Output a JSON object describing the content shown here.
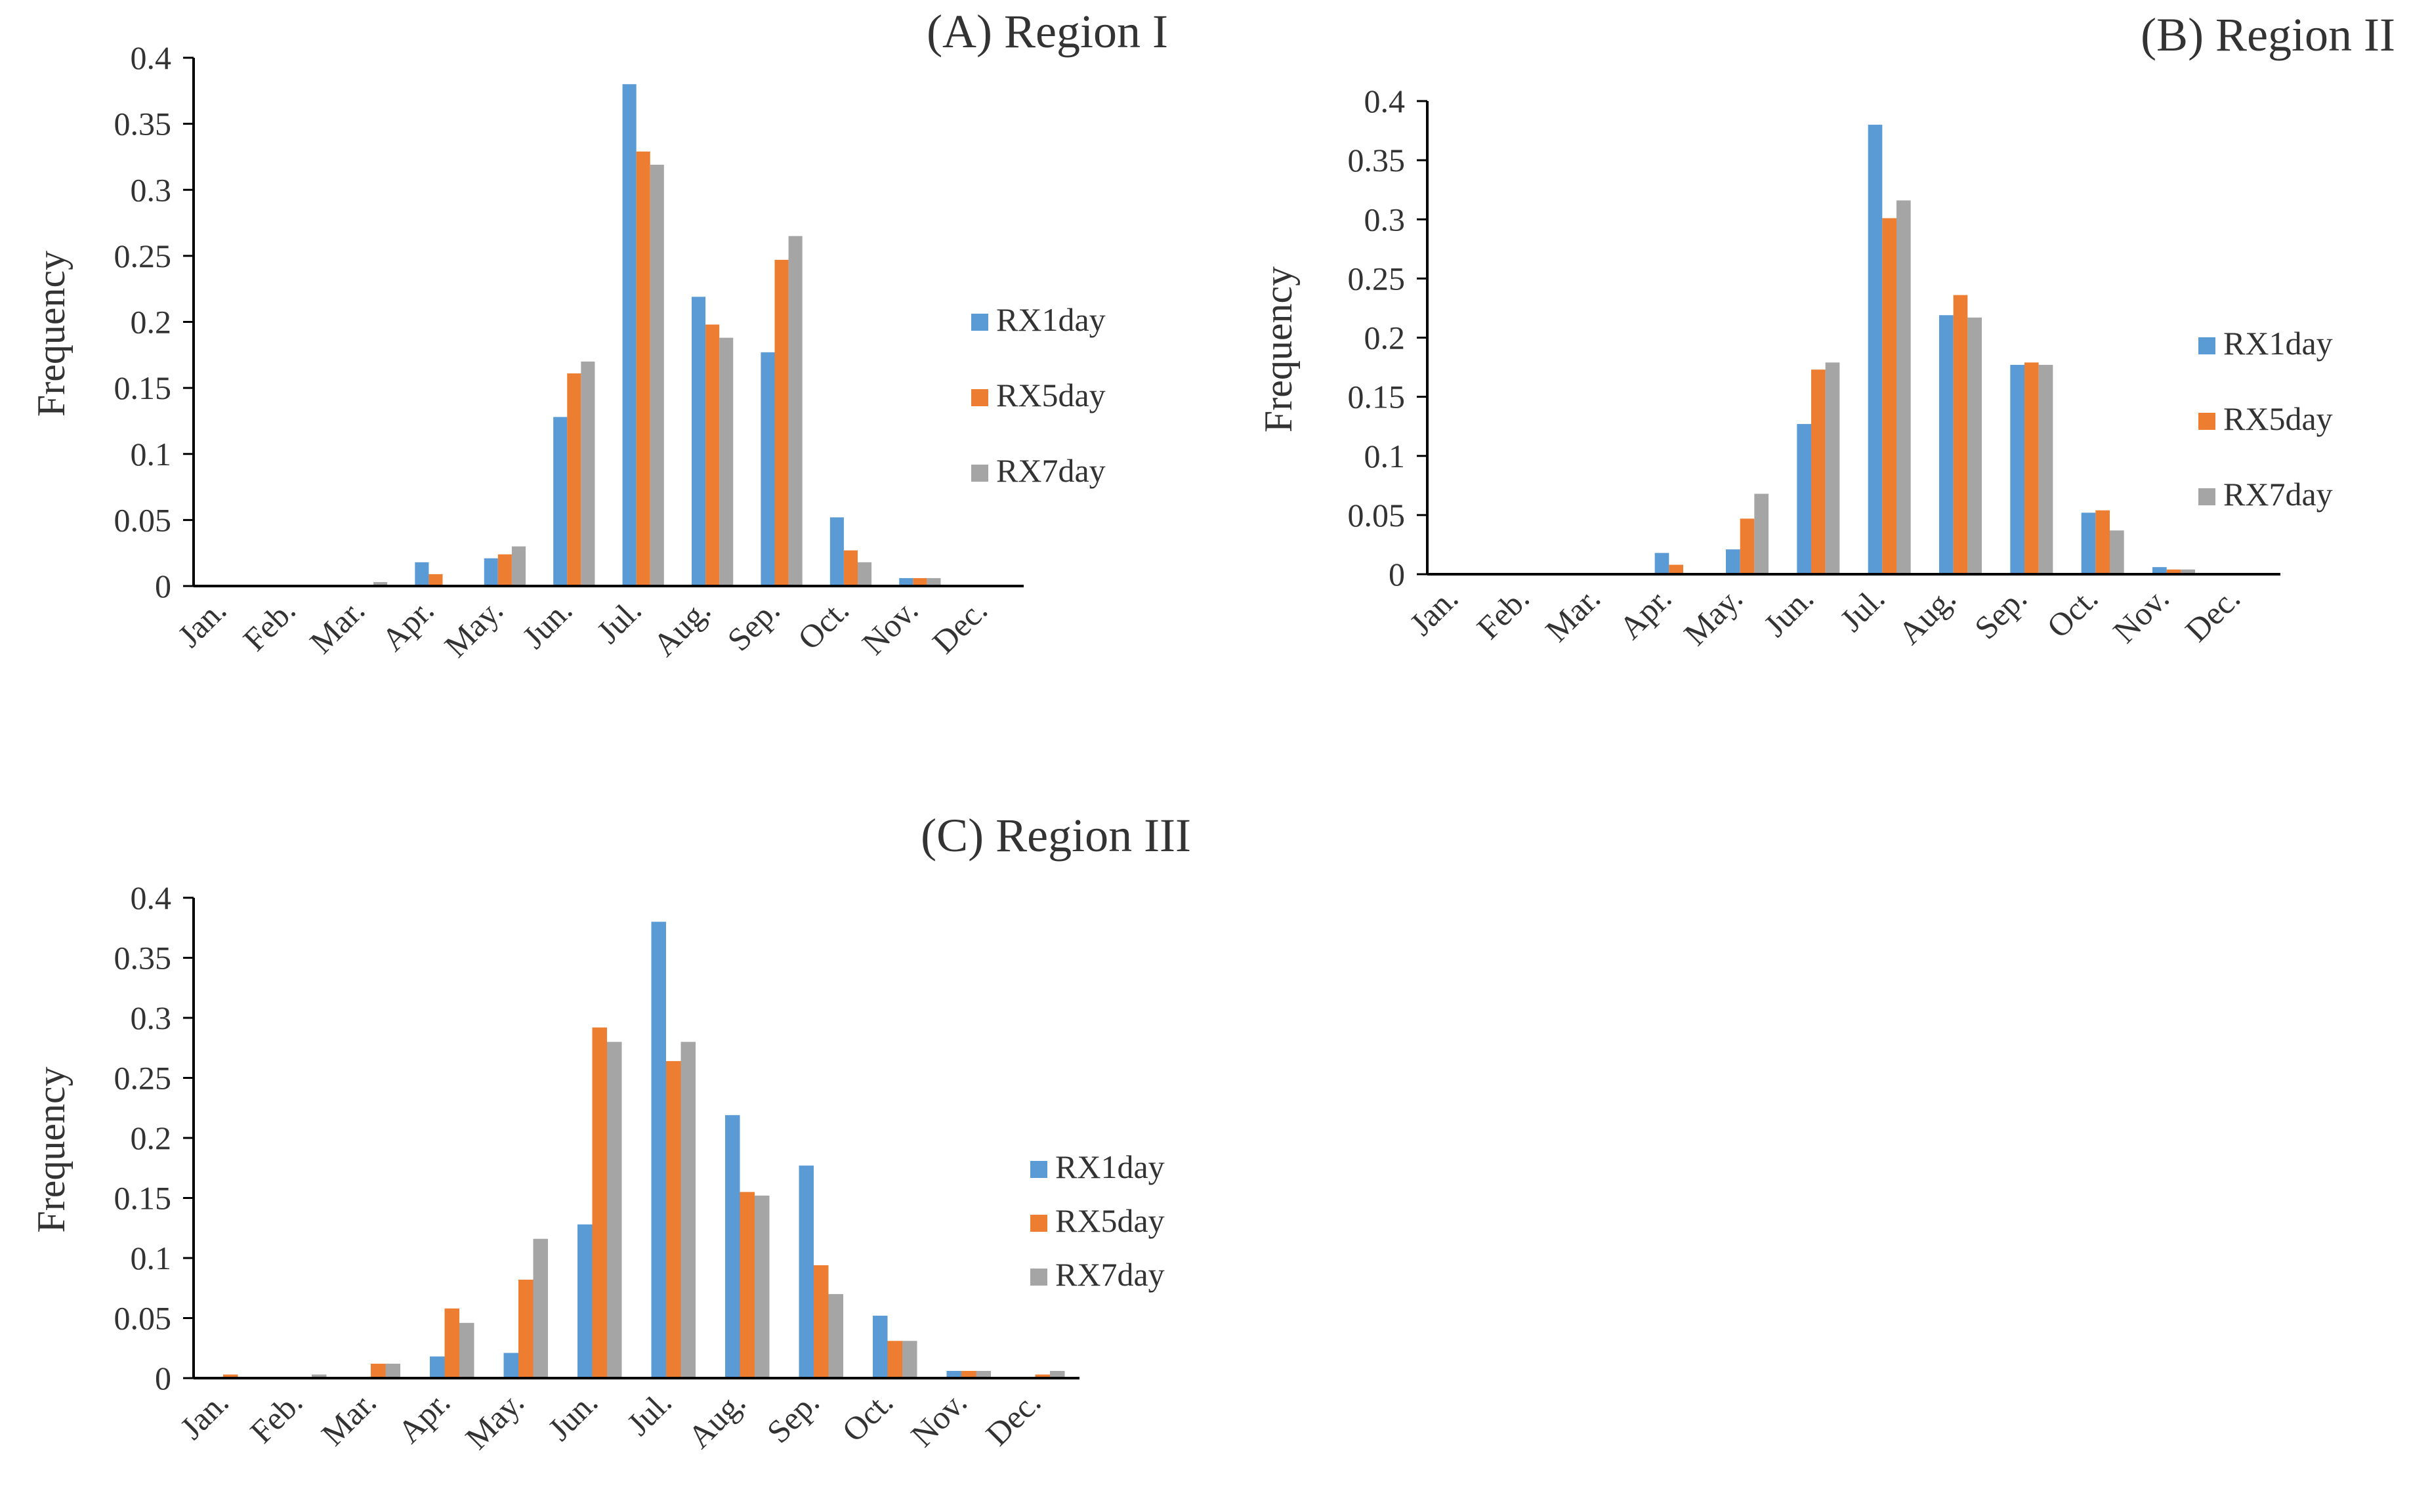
{
  "colors": {
    "RX1day": "#5B9BD5",
    "RX5day": "#ED7D31",
    "RX7day": "#A5A5A5",
    "axis": "#000000",
    "text": "#333333"
  },
  "chart_data": [
    {
      "type": "bar",
      "title": "(A) Region I",
      "xlabel": "",
      "ylabel": "Frequency",
      "ylim": [
        0,
        0.4
      ],
      "yticks": [
        "0",
        "0.05",
        "0.1",
        "0.15",
        "0.2",
        "0.25",
        "0.3",
        "0.35",
        "0.4"
      ],
      "legend_position": "right",
      "grid": false,
      "categories": [
        "Jan.",
        "Feb.",
        "Mar.",
        "Apr.",
        "May.",
        "Jun.",
        "Jul.",
        "Aug.",
        "Sep.",
        "Oct.",
        "Nov.",
        "Dec."
      ],
      "series": [
        {
          "name": "RX1day",
          "values": [
            0,
            0,
            0,
            0.018,
            0.021,
            0.128,
            0.38,
            0.219,
            0.177,
            0.052,
            0.006,
            0
          ]
        },
        {
          "name": "RX5day",
          "values": [
            0,
            0,
            0,
            0.009,
            0.024,
            0.161,
            0.329,
            0.198,
            0.247,
            0.027,
            0.006,
            0
          ]
        },
        {
          "name": "RX7day",
          "values": [
            0,
            0,
            0.003,
            0,
            0.03,
            0.17,
            0.319,
            0.188,
            0.265,
            0.018,
            0.006,
            0
          ]
        }
      ]
    },
    {
      "type": "bar",
      "title": "(B) Region II",
      "xlabel": "",
      "ylabel": "Frequency",
      "ylim": [
        0,
        0.4
      ],
      "yticks": [
        "0",
        "0.05",
        "0.1",
        "0.15",
        "0.2",
        "0.25",
        "0.3",
        "0.35",
        "0.4"
      ],
      "legend_position": "right",
      "grid": false,
      "categories": [
        "Jan.",
        "Feb.",
        "Mar.",
        "Apr.",
        "May.",
        "Jun.",
        "Jul.",
        "Aug.",
        "Sep.",
        "Oct.",
        "Nov.",
        "Dec."
      ],
      "series": [
        {
          "name": "RX1day",
          "values": [
            0,
            0,
            0.001,
            0.018,
            0.021,
            0.127,
            0.38,
            0.219,
            0.177,
            0.052,
            0.006,
            0
          ]
        },
        {
          "name": "RX5day",
          "values": [
            0,
            0,
            0,
            0.008,
            0.047,
            0.173,
            0.301,
            0.236,
            0.179,
            0.054,
            0.004,
            0
          ]
        },
        {
          "name": "RX7day",
          "values": [
            0,
            0,
            0,
            0,
            0.068,
            0.179,
            0.316,
            0.217,
            0.177,
            0.037,
            0.004,
            0
          ]
        }
      ]
    },
    {
      "type": "bar",
      "title": "(C) Region III",
      "xlabel": "",
      "ylabel": "Frequency",
      "ylim": [
        0,
        0.4
      ],
      "yticks": [
        "0",
        "0.05",
        "0.1",
        "0.15",
        "0.2",
        "0.25",
        "0.3",
        "0.35",
        "0.4"
      ],
      "legend_position": "right",
      "grid": false,
      "categories": [
        "Jan.",
        "Feb.",
        "Mar.",
        "Apr.",
        "May.",
        "Jun.",
        "Jul.",
        "Aug.",
        "Sep.",
        "Oct.",
        "Nov.",
        "Dec."
      ],
      "series": [
        {
          "name": "RX1day",
          "values": [
            0,
            0,
            0,
            0.018,
            0.021,
            0.128,
            0.38,
            0.219,
            0.177,
            0.052,
            0.006,
            0
          ]
        },
        {
          "name": "RX5day",
          "values": [
            0.003,
            0,
            0.012,
            0.058,
            0.082,
            0.292,
            0.264,
            0.155,
            0.094,
            0.031,
            0.006,
            0.003
          ]
        },
        {
          "name": "RX7day",
          "values": [
            0,
            0.003,
            0.012,
            0.046,
            0.116,
            0.28,
            0.28,
            0.152,
            0.07,
            0.031,
            0.006,
            0.006
          ]
        }
      ]
    }
  ]
}
